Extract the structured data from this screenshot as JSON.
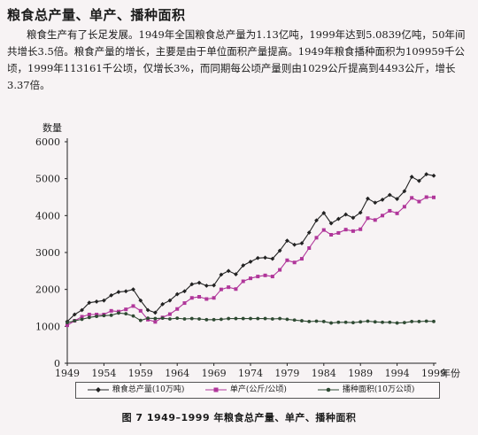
{
  "heading": "粮食总产量、单产、播种面积",
  "paragraph": "粮食生产有了长足发展。1949年全国粮食总产量为1.13亿吨，1999年达到5.0839亿吨，50年间共增长3.5倍。粮食产量的增长，主要是由于单位面积产量提高。1949年粮食播种面积为109959千公顷，1999年113161千公顷，仅增长3%，而同期每公顷产量则由1029公斤提高到4493公斤，增长3.37倍。",
  "caption": "图 7   1949–1999 年粮食总产量、单产、播种面积",
  "chart_data": {
    "type": "line",
    "ylabel": "数量",
    "xlabel": "年份",
    "ylim": [
      0,
      6000
    ],
    "yticks": [
      0,
      1000,
      2000,
      3000,
      4000,
      5000,
      6000
    ],
    "xticks": [
      1949,
      1954,
      1959,
      1964,
      1969,
      1974,
      1979,
      1984,
      1989,
      1994,
      1999
    ],
    "x": [
      1949,
      1950,
      1951,
      1952,
      1953,
      1954,
      1955,
      1956,
      1957,
      1958,
      1959,
      1960,
      1961,
      1962,
      1963,
      1964,
      1965,
      1966,
      1967,
      1968,
      1969,
      1970,
      1971,
      1972,
      1973,
      1974,
      1975,
      1976,
      1977,
      1978,
      1979,
      1980,
      1981,
      1982,
      1983,
      1984,
      1985,
      1986,
      1987,
      1988,
      1989,
      1990,
      1991,
      1992,
      1993,
      1994,
      1995,
      1996,
      1997,
      1998,
      1999
    ],
    "series": [
      {
        "name": "粮食总产量(10万吨)",
        "color": "#222222",
        "marker": "diamond",
        "values": [
          1130,
          1320,
          1440,
          1640,
          1670,
          1700,
          1840,
          1930,
          1950,
          2000,
          1700,
          1440,
          1370,
          1600,
          1700,
          1870,
          1950,
          2140,
          2180,
          2100,
          2110,
          2400,
          2500,
          2410,
          2650,
          2750,
          2850,
          2860,
          2830,
          3050,
          3320,
          3210,
          3250,
          3540,
          3870,
          4070,
          3790,
          3910,
          4030,
          3940,
          4080,
          4460,
          4350,
          4430,
          4560,
          4450,
          4660,
          5050,
          4940,
          5120,
          5080
        ]
      },
      {
        "name": "单产(公斤/公顷)",
        "color": "#b0369a",
        "marker": "square",
        "values": [
          1029,
          1150,
          1260,
          1320,
          1320,
          1320,
          1420,
          1400,
          1460,
          1550,
          1420,
          1180,
          1120,
          1240,
          1330,
          1470,
          1630,
          1770,
          1800,
          1740,
          1770,
          2000,
          2060,
          2010,
          2220,
          2300,
          2350,
          2380,
          2350,
          2530,
          2790,
          2730,
          2830,
          3120,
          3400,
          3610,
          3480,
          3530,
          3620,
          3580,
          3630,
          3930,
          3880,
          4000,
          4130,
          4060,
          4240,
          4480,
          4380,
          4500,
          4493
        ]
      },
      {
        "name": "播种面积(10万公顷)",
        "color": "#2f4a33",
        "marker": "dot",
        "values": [
          1100,
          1150,
          1190,
          1240,
          1270,
          1290,
          1300,
          1360,
          1340,
          1280,
          1160,
          1220,
          1210,
          1220,
          1200,
          1220,
          1200,
          1210,
          1200,
          1180,
          1180,
          1190,
          1210,
          1210,
          1210,
          1210,
          1210,
          1210,
          1200,
          1210,
          1190,
          1170,
          1150,
          1130,
          1140,
          1130,
          1090,
          1110,
          1110,
          1100,
          1120,
          1140,
          1120,
          1110,
          1110,
          1090,
          1100,
          1130,
          1130,
          1140,
          1132
        ]
      }
    ]
  }
}
